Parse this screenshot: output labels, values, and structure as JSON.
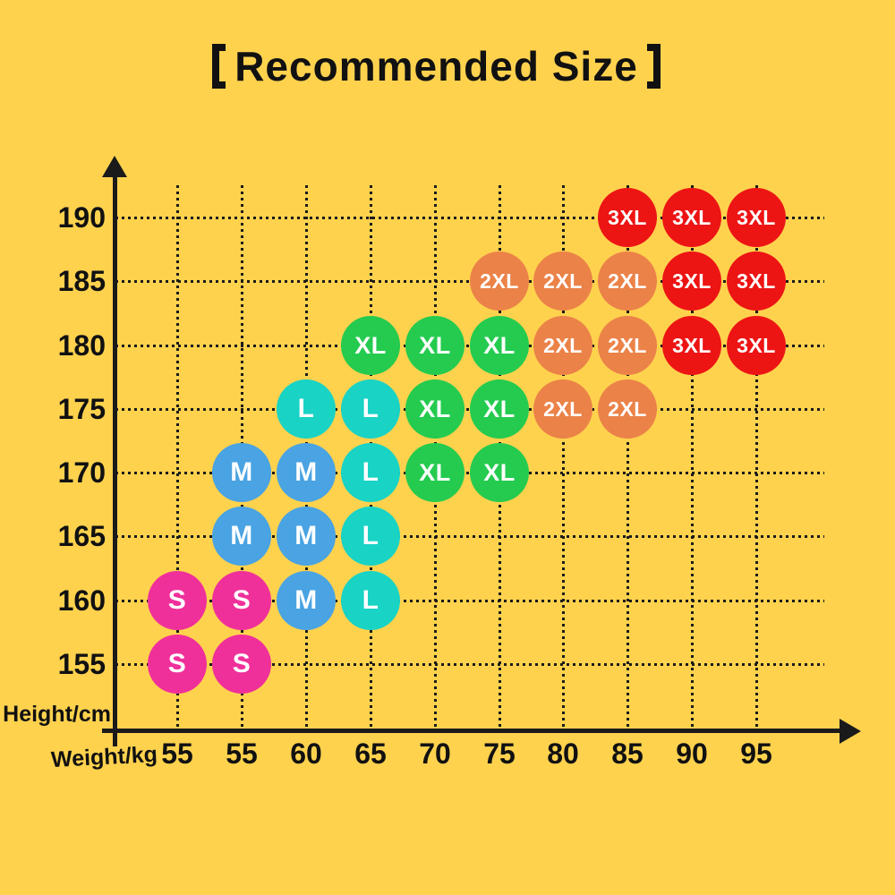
{
  "title": {
    "full": "【Recommended Size】",
    "text": "Recommended Size"
  },
  "axes": {
    "y_label": "Height/cm",
    "x_label": "Weight/kg",
    "y_ticks": [
      "190",
      "185",
      "180",
      "175",
      "170",
      "165",
      "160",
      "155"
    ],
    "x_ticks": [
      "55",
      "55",
      "60",
      "65",
      "70",
      "75",
      "80",
      "85",
      "90",
      "95"
    ]
  },
  "chart_data": {
    "type": "scatter",
    "title": "【Recommended Size】",
    "xlabel": "Weight/kg",
    "ylabel": "Height/cm",
    "x_categories": [
      "55",
      "55",
      "60",
      "65",
      "70",
      "75",
      "80",
      "85",
      "90",
      "95"
    ],
    "y_categories": [
      "190",
      "185",
      "180",
      "175",
      "170",
      "165",
      "160",
      "155"
    ],
    "grid": "dotted",
    "legend": "none",
    "size_colors": {
      "S": "#F0309A",
      "M": "#4AA3E2",
      "L": "#19D3C5",
      "XL": "#24CB4F",
      "2XL": "#EB8248",
      "3XL": "#ED1414"
    },
    "points": [
      {
        "r": 0,
        "c": 7,
        "s": "3XL"
      },
      {
        "r": 0,
        "c": 8,
        "s": "3XL"
      },
      {
        "r": 0,
        "c": 9,
        "s": "3XL"
      },
      {
        "r": 1,
        "c": 5,
        "s": "2XL"
      },
      {
        "r": 1,
        "c": 6,
        "s": "2XL"
      },
      {
        "r": 1,
        "c": 7,
        "s": "2XL"
      },
      {
        "r": 1,
        "c": 8,
        "s": "3XL"
      },
      {
        "r": 1,
        "c": 9,
        "s": "3XL"
      },
      {
        "r": 2,
        "c": 3,
        "s": "XL"
      },
      {
        "r": 2,
        "c": 4,
        "s": "XL"
      },
      {
        "r": 2,
        "c": 5,
        "s": "XL"
      },
      {
        "r": 2,
        "c": 6,
        "s": "2XL"
      },
      {
        "r": 2,
        "c": 7,
        "s": "2XL"
      },
      {
        "r": 2,
        "c": 8,
        "s": "3XL"
      },
      {
        "r": 2,
        "c": 9,
        "s": "3XL"
      },
      {
        "r": 3,
        "c": 2,
        "s": "L"
      },
      {
        "r": 3,
        "c": 3,
        "s": "L"
      },
      {
        "r": 3,
        "c": 4,
        "s": "XL"
      },
      {
        "r": 3,
        "c": 5,
        "s": "XL"
      },
      {
        "r": 3,
        "c": 6,
        "s": "2XL"
      },
      {
        "r": 3,
        "c": 7,
        "s": "2XL"
      },
      {
        "r": 4,
        "c": 1,
        "s": "M"
      },
      {
        "r": 4,
        "c": 2,
        "s": "M"
      },
      {
        "r": 4,
        "c": 3,
        "s": "L"
      },
      {
        "r": 4,
        "c": 4,
        "s": "XL"
      },
      {
        "r": 4,
        "c": 5,
        "s": "XL"
      },
      {
        "r": 5,
        "c": 1,
        "s": "M"
      },
      {
        "r": 5,
        "c": 2,
        "s": "M"
      },
      {
        "r": 5,
        "c": 3,
        "s": "L"
      },
      {
        "r": 6,
        "c": 0,
        "s": "S"
      },
      {
        "r": 6,
        "c": 1,
        "s": "S"
      },
      {
        "r": 6,
        "c": 2,
        "s": "M"
      },
      {
        "r": 6,
        "c": 3,
        "s": "L"
      },
      {
        "r": 7,
        "c": 0,
        "s": "S"
      },
      {
        "r": 7,
        "c": 1,
        "s": "S"
      }
    ]
  },
  "colors": {
    "background": "#FFD24E",
    "axis": "#1A1A1A",
    "text": "#111111",
    "circle_text": "#FFFFFF"
  }
}
